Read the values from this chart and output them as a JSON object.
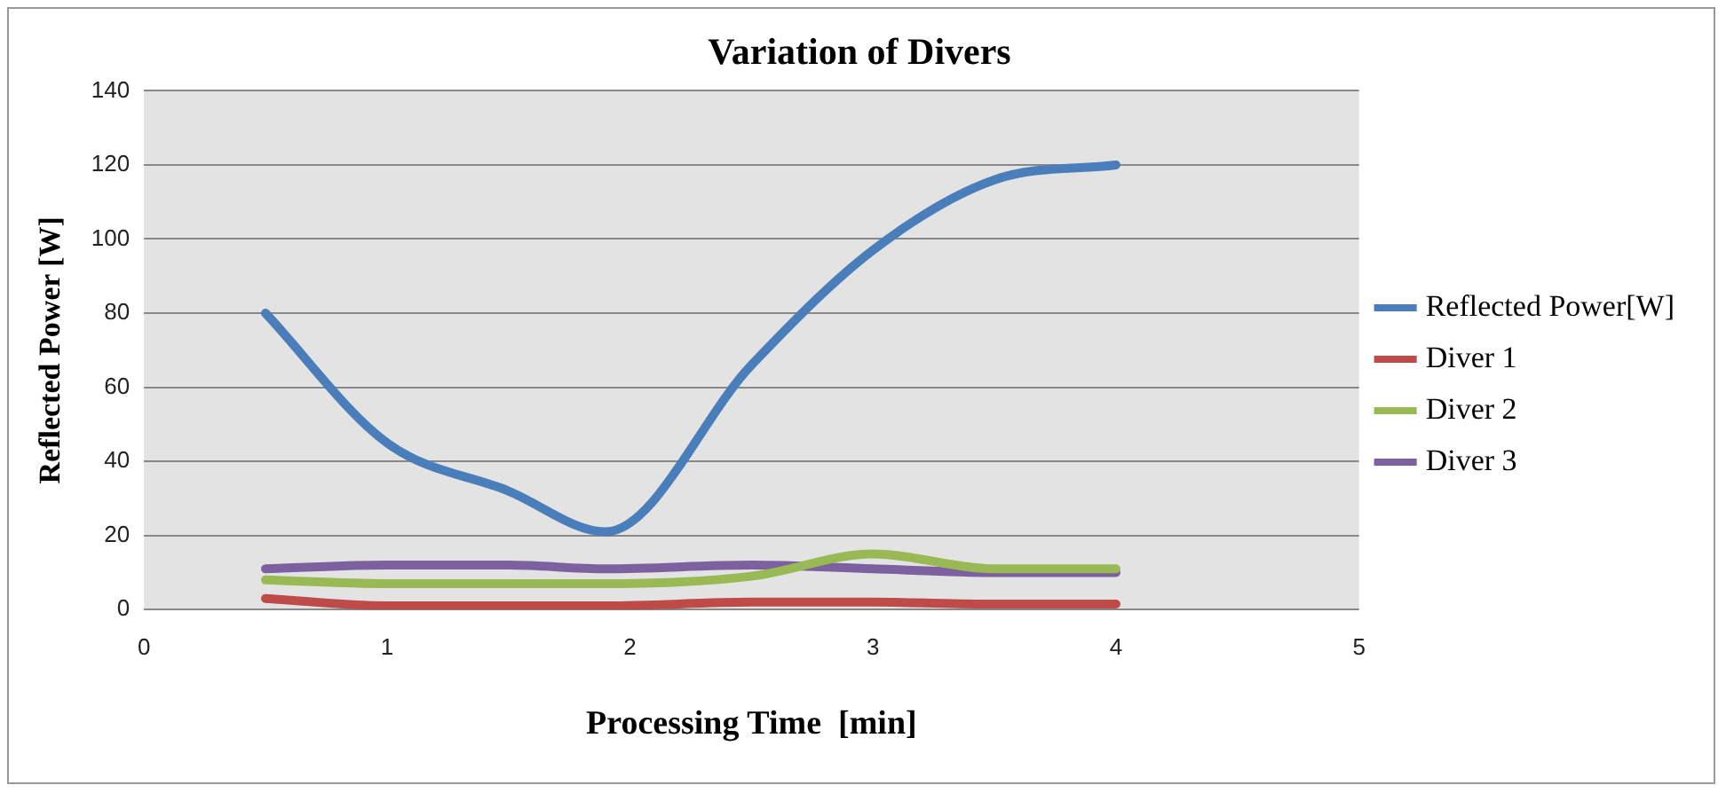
{
  "chart_data": {
    "type": "line",
    "title": "Variation of Divers",
    "xlabel": "Processing Time  [min]",
    "ylabel": "Reflected Power [W]",
    "x": [
      0.5,
      1,
      1.5,
      1.9,
      2.5,
      3,
      3.5,
      4
    ],
    "series": [
      {
        "name": "Reflected Power[W]",
        "color": "#4a7ebb",
        "values": [
          80,
          45,
          32,
          21,
          66,
          97,
          116,
          120
        ]
      },
      {
        "name": "Diver 1",
        "color": "#be4b48",
        "values": [
          3,
          1,
          1,
          1,
          2,
          2,
          1.5,
          1.5
        ]
      },
      {
        "name": "Diver 2",
        "color": "#98b954",
        "values": [
          8,
          7,
          7,
          7,
          9,
          15,
          11,
          11
        ]
      },
      {
        "name": "Diver 3",
        "color": "#7d60a0",
        "values": [
          11,
          12,
          12,
          11,
          12,
          11,
          10,
          10
        ]
      }
    ],
    "xlim": [
      0,
      5
    ],
    "xticks": [
      0,
      1,
      2,
      3,
      4,
      5
    ],
    "ylim": [
      0,
      140
    ],
    "yticks": [
      0,
      20,
      40,
      60,
      80,
      100,
      120,
      140
    ],
    "grid": "y",
    "legend": "right",
    "marker": "none",
    "line_style": "solid"
  }
}
